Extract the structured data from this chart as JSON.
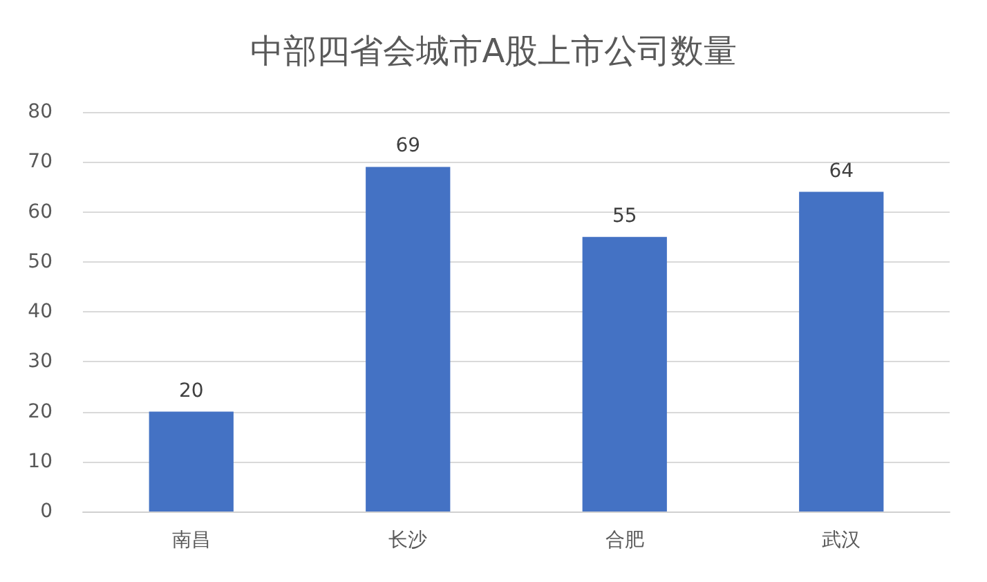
{
  "chart_data": {
    "type": "bar",
    "title": "中部四省会城市A股上市公司数量",
    "categories": [
      "南昌",
      "长沙",
      "合肥",
      "武汉"
    ],
    "values": [
      20,
      69,
      55,
      64
    ],
    "color": "#4472c4",
    "ylim": [
      0,
      80
    ],
    "yticks": [
      0,
      10,
      20,
      30,
      40,
      50,
      60,
      70,
      80
    ],
    "grid": "y",
    "data_labels": true
  }
}
